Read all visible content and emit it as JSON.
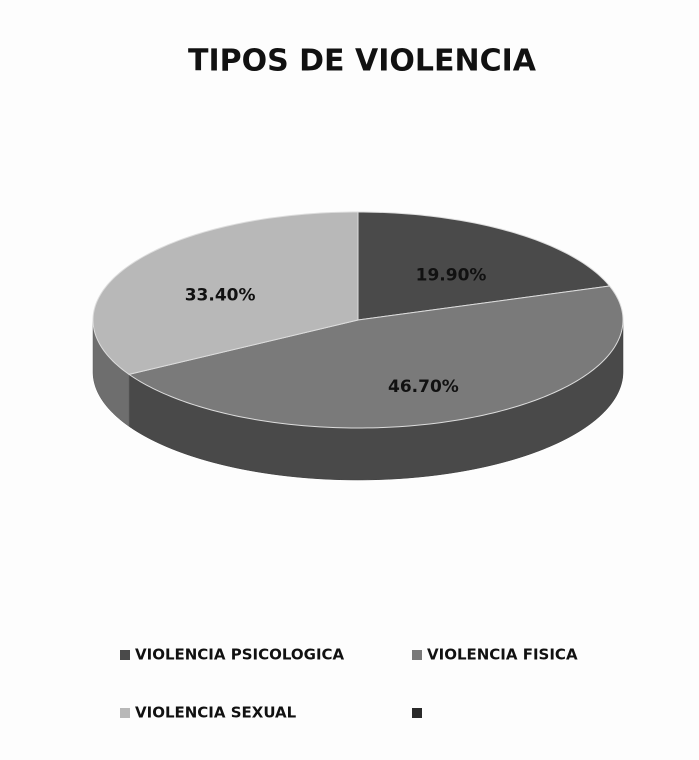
{
  "chart_data": {
    "type": "pie3d",
    "title": "TIPOS DE VIOLENCIA",
    "categories": [
      "VIOLENCIA PSICOLOGICA",
      "VIOLENCIA FISICA",
      "VIOLENCIA SEXUAL",
      null
    ],
    "values": [
      19.9,
      46.7,
      33.4,
      0
    ],
    "value_labels": [
      "19.90%",
      "46.70%",
      "33.40%",
      null
    ],
    "colors": [
      "#4a4a4a",
      "#7a7a7a",
      "#b8b8b8",
      "#2a2a2a"
    ]
  }
}
